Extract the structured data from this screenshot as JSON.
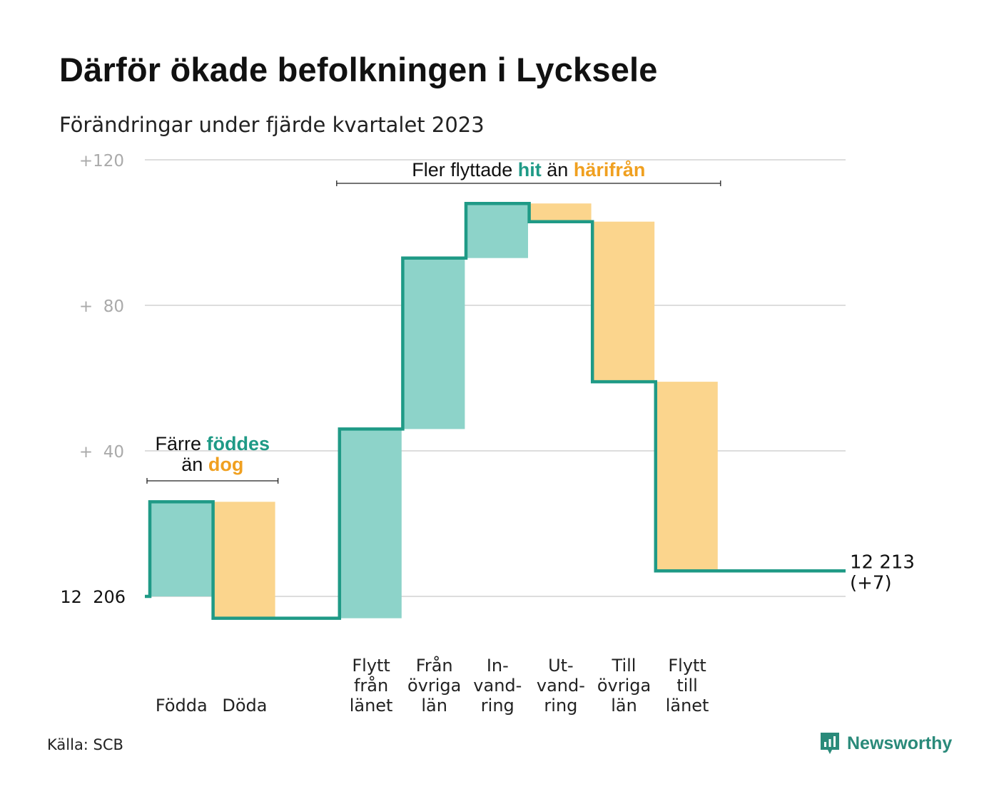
{
  "title": "Därför ökade befolkningen i Lycksele",
  "subtitle": "Förändringar under fjärde kvartalet 2023",
  "source": "Källa: SCB",
  "brand": {
    "name": "Newsworthy",
    "icon": "newsworthy-logo-icon"
  },
  "colors": {
    "increase_fill": "#8dd3c9",
    "decrease_fill": "#fbd58d",
    "line": "#1f9a86",
    "increase_text": "#1f9a86",
    "decrease_text": "#f0a020",
    "grid": "#dddddd",
    "tick": "#aaaaaa"
  },
  "chart_data": {
    "type": "waterfall",
    "start_value": 12206,
    "start_label": "12  206",
    "end_label_line1": "12 213",
    "end_label_line2": "(+7)",
    "ylim": [
      -6,
      120
    ],
    "yticks": [
      {
        "value": 120,
        "label": "+120"
      },
      {
        "value": 80,
        "label": "+  80"
      },
      {
        "value": 40,
        "label": "+  40"
      }
    ],
    "grid": true,
    "categories": [
      {
        "label": [
          "Födda"
        ],
        "value": 26,
        "kind": "increase"
      },
      {
        "label": [
          "Döda"
        ],
        "value": -32,
        "kind": "decrease"
      },
      {
        "label": [
          ""
        ],
        "value": 0,
        "kind": "none"
      },
      {
        "label": [
          "Flytt",
          "från",
          "länet"
        ],
        "value": 52,
        "kind": "increase"
      },
      {
        "label": [
          "Från",
          "övriga",
          "län"
        ],
        "value": 47,
        "kind": "increase"
      },
      {
        "label": [
          "In-",
          "vand-",
          "ring"
        ],
        "value": 15,
        "kind": "increase"
      },
      {
        "label": [
          "Ut-",
          "vand-",
          "ring"
        ],
        "value": -5,
        "kind": "decrease"
      },
      {
        "label": [
          "Till",
          "övriga",
          "län"
        ],
        "value": -44,
        "kind": "decrease"
      },
      {
        "label": [
          "Flytt",
          "till",
          "länet"
        ],
        "value": -52,
        "kind": "decrease"
      },
      {
        "label": [
          ""
        ],
        "value": 0,
        "kind": "none"
      }
    ],
    "annotations": [
      {
        "id": "births-deaths",
        "from_index": 0,
        "to_index": 1,
        "line1": [
          {
            "text": "Färre ",
            "style": "plain"
          },
          {
            "text": "föddes",
            "style": "increase"
          }
        ],
        "line2": [
          {
            "text": "än ",
            "style": "plain"
          },
          {
            "text": "dog",
            "style": "decrease"
          }
        ]
      },
      {
        "id": "migration",
        "from_index": 3,
        "to_index": 8,
        "line1": [
          {
            "text": "Fler flyttade ",
            "style": "plain"
          },
          {
            "text": "hit",
            "style": "increase"
          },
          {
            "text": " än ",
            "style": "plain"
          },
          {
            "text": "härifrån",
            "style": "decrease"
          }
        ]
      }
    ]
  }
}
